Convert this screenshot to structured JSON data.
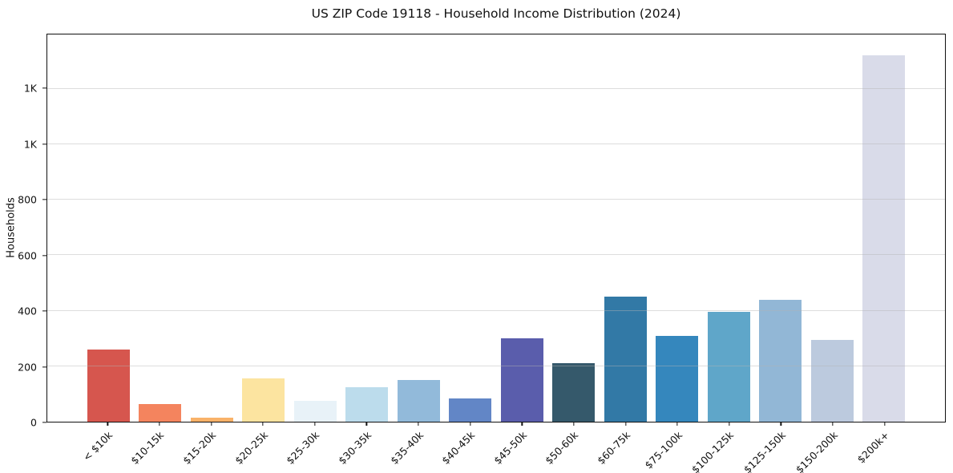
{
  "figure": {
    "title": "US ZIP Code 19118 - Household Income Distribution (2024)",
    "background_color": "#ffffff",
    "spine_color": "#111111",
    "gridline_color": "#e6e6e6"
  },
  "chart_data": {
    "type": "bar",
    "title": "US ZIP Code 19118 - Household Income Distribution (2024)",
    "xlabel": "",
    "ylabel": "Households",
    "categories": [
      "< $10k",
      "$10-15k",
      "$15-20k",
      "$20-25k",
      "$25-30k",
      "$30-35k",
      "$35-40k",
      "$40-45k",
      "$45-50k",
      "$50-60k",
      "$60-75k",
      "$75-100k",
      "$100-125k",
      "$125-150k",
      "$150-200k",
      "$200k+"
    ],
    "values": [
      260,
      65,
      15,
      155,
      75,
      125,
      150,
      85,
      300,
      210,
      450,
      310,
      395,
      440,
      295,
      1320
    ],
    "bar_colors": [
      "#d6564e",
      "#f4845e",
      "#f9b269",
      "#fce4a0",
      "#e8f2f8",
      "#bcdcec",
      "#92bada",
      "#6286c6",
      "#5a5dac",
      "#35596b",
      "#3279a6",
      "#3587bd",
      "#5fa6c9",
      "#92b7d6",
      "#bccade",
      "#d9dbe9"
    ],
    "yticks": [
      {
        "value": 0,
        "label": "0"
      },
      {
        "value": 200,
        "label": "200"
      },
      {
        "value": 400,
        "label": "400"
      },
      {
        "value": 600,
        "label": "600"
      },
      {
        "value": 800,
        "label": "800"
      },
      {
        "value": 1000,
        "label": "1K"
      },
      {
        "value": 1200,
        "label": "1K"
      }
    ],
    "ylim": [
      0,
      1396
    ],
    "grid": true,
    "grid_axis": "y",
    "grid_above_bars": true,
    "xtick_rotation": 45,
    "legend": "none",
    "bar_width_ratio": 0.82
  }
}
